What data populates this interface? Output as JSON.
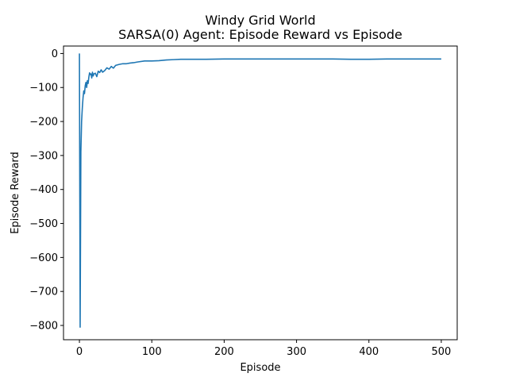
{
  "chart_data": {
    "type": "line",
    "title": "Windy Grid World",
    "subtitle": "SARSA(0) Agent: Episode Reward vs Episode",
    "xlabel": "Episode",
    "ylabel": "Episode Reward",
    "xlim": [
      -22,
      522
    ],
    "ylim": [
      -842,
      22
    ],
    "xticks": [
      0,
      100,
      200,
      300,
      400,
      500
    ],
    "yticks": [
      0,
      -100,
      -200,
      -300,
      -400,
      -500,
      -600,
      -700,
      -800
    ],
    "grid": false,
    "legend": "none",
    "series_color": "#1f77b4",
    "x": [
      0,
      1,
      2,
      3,
      4,
      5,
      6,
      7,
      8,
      9,
      10,
      11,
      12,
      13,
      14,
      15,
      16,
      17,
      18,
      19,
      20,
      22,
      24,
      26,
      28,
      30,
      32,
      35,
      38,
      41,
      44,
      47,
      50,
      55,
      60,
      65,
      70,
      75,
      80,
      90,
      100,
      110,
      120,
      130,
      140,
      150,
      175,
      200,
      225,
      250,
      275,
      300,
      325,
      350,
      375,
      400,
      425,
      450,
      475,
      500
    ],
    "y": [
      0,
      -805,
      -290,
      -200,
      -160,
      -130,
      -110,
      -118,
      -95,
      -85,
      -100,
      -80,
      -88,
      -70,
      -57,
      -62,
      -60,
      -72,
      -55,
      -66,
      -60,
      -58,
      -68,
      -52,
      -56,
      -48,
      -55,
      -50,
      -42,
      -46,
      -38,
      -43,
      -35,
      -32,
      -30,
      -30,
      -28,
      -27,
      -25,
      -22,
      -22,
      -21,
      -19,
      -18,
      -17,
      -17,
      -17,
      -16,
      -16,
      -16,
      -16,
      -16,
      -16,
      -16,
      -17,
      -17,
      -16,
      -16,
      -16,
      -16
    ]
  }
}
